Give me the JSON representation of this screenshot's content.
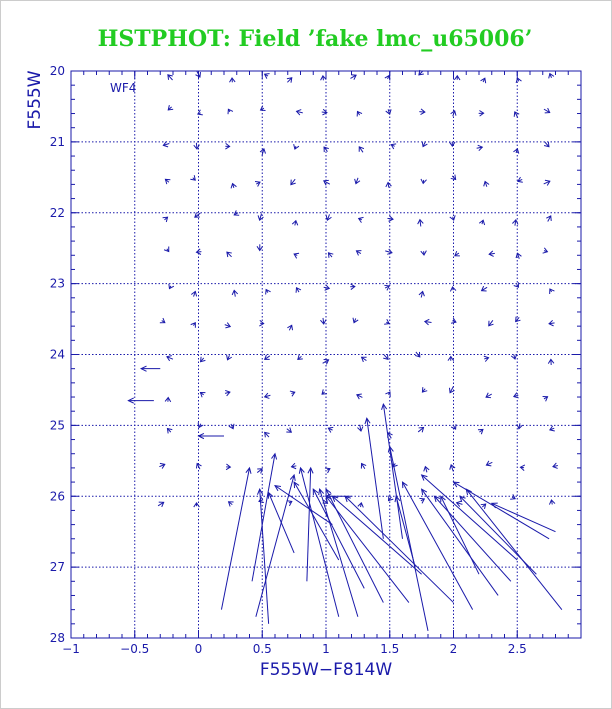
{
  "chart_data": {
    "type": "vector-field",
    "title": "HSTPHOT: Field ’fake lmc_u65006’",
    "xlabel": "F555W−F814W",
    "ylabel": "F555W",
    "annotation": "WF4",
    "xlim": [
      -1,
      3.0
    ],
    "ylim": [
      28,
      20
    ],
    "y_inverted": true,
    "grid": true,
    "grid_style": "dotted",
    "xticks": [
      -1,
      -0.5,
      0,
      0.5,
      1,
      1.5,
      2,
      2.5
    ],
    "xtick_labels": [
      "−1",
      "−0.5",
      "0",
      "0.5",
      "1",
      "1.5",
      "2",
      "2.5"
    ],
    "yticks": [
      20,
      21,
      22,
      23,
      24,
      25,
      26,
      27,
      28
    ],
    "ytick_labels": [
      "20",
      "21",
      "22",
      "23",
      "24",
      "25",
      "26",
      "27",
      "28"
    ],
    "input_colors": [
      -0.25,
      0.0,
      0.25,
      0.5,
      0.75,
      1.0,
      1.25,
      1.5,
      1.75,
      2.0,
      2.25,
      2.5,
      2.75
    ],
    "input_mags": [
      20.0,
      20.5,
      21.0,
      21.5,
      22.0,
      22.5,
      23.0,
      23.5,
      24.0,
      24.5,
      25.0,
      25.5,
      26.0
    ],
    "long_vectors": [
      {
        "from": [
          0.18,
          27.6
        ],
        "to": [
          0.4,
          25.6
        ]
      },
      {
        "from": [
          0.42,
          27.2
        ],
        "to": [
          0.6,
          25.4
        ]
      },
      {
        "from": [
          0.55,
          27.8
        ],
        "to": [
          0.48,
          25.9
        ]
      },
      {
        "from": [
          0.45,
          27.7
        ],
        "to": [
          0.75,
          25.7
        ]
      },
      {
        "from": [
          0.85,
          27.2
        ],
        "to": [
          0.88,
          25.6
        ]
      },
      {
        "from": [
          1.1,
          27.7
        ],
        "to": [
          0.8,
          25.6
        ]
      },
      {
        "from": [
          1.25,
          27.7
        ],
        "to": [
          0.95,
          25.9
        ]
      },
      {
        "from": [
          1.45,
          27.5
        ],
        "to": [
          1.0,
          25.9
        ]
      },
      {
        "from": [
          0.75,
          26.8
        ],
        "to": [
          0.55,
          25.95
        ]
      },
      {
        "from": [
          1.05,
          26.4
        ],
        "to": [
          0.6,
          25.85
        ]
      },
      {
        "from": [
          1.1,
          26.9
        ],
        "to": [
          0.75,
          25.8
        ]
      },
      {
        "from": [
          1.3,
          27.3
        ],
        "to": [
          0.9,
          25.9
        ]
      },
      {
        "from": [
          1.65,
          27.5
        ],
        "to": [
          1.0,
          26.0
        ]
      },
      {
        "from": [
          1.75,
          27.1
        ],
        "to": [
          1.05,
          26.0
        ]
      },
      {
        "from": [
          2.0,
          27.5
        ],
        "to": [
          1.15,
          26.0
        ]
      },
      {
        "from": [
          1.8,
          27.9
        ],
        "to": [
          1.5,
          25.3
        ]
      },
      {
        "from": [
          1.7,
          27.0
        ],
        "to": [
          1.55,
          26.0
        ]
      },
      {
        "from": [
          1.45,
          26.6
        ],
        "to": [
          1.32,
          24.9
        ]
      },
      {
        "from": [
          2.15,
          27.6
        ],
        "to": [
          1.6,
          25.8
        ]
      },
      {
        "from": [
          2.35,
          27.4
        ],
        "to": [
          1.75,
          25.9
        ]
      },
      {
        "from": [
          2.5,
          26.9
        ],
        "to": [
          1.75,
          25.7
        ]
      },
      {
        "from": [
          2.2,
          27.1
        ],
        "to": [
          1.9,
          26.0
        ]
      },
      {
        "from": [
          2.75,
          26.6
        ],
        "to": [
          2.0,
          25.8
        ]
      },
      {
        "from": [
          2.65,
          27.1
        ],
        "to": [
          2.05,
          26.0
        ]
      },
      {
        "from": [
          2.85,
          27.6
        ],
        "to": [
          2.1,
          25.9
        ]
      },
      {
        "from": [
          2.45,
          27.2
        ],
        "to": [
          1.85,
          26.0
        ]
      },
      {
        "from": [
          1.6,
          26.6
        ],
        "to": [
          1.45,
          24.7
        ]
      },
      {
        "from": [
          2.8,
          26.5
        ],
        "to": [
          2.3,
          26.1
        ]
      },
      {
        "from": [
          1.2,
          26.0
        ],
        "to": [
          1.0,
          26.0
        ]
      },
      {
        "from": [
          0.2,
          25.15
        ],
        "to": [
          0.0,
          25.15
        ]
      },
      {
        "from": [
          -0.3,
          24.2
        ],
        "to": [
          -0.45,
          24.2
        ]
      },
      {
        "from": [
          -0.35,
          24.65
        ],
        "to": [
          -0.55,
          24.65
        ]
      }
    ]
  }
}
